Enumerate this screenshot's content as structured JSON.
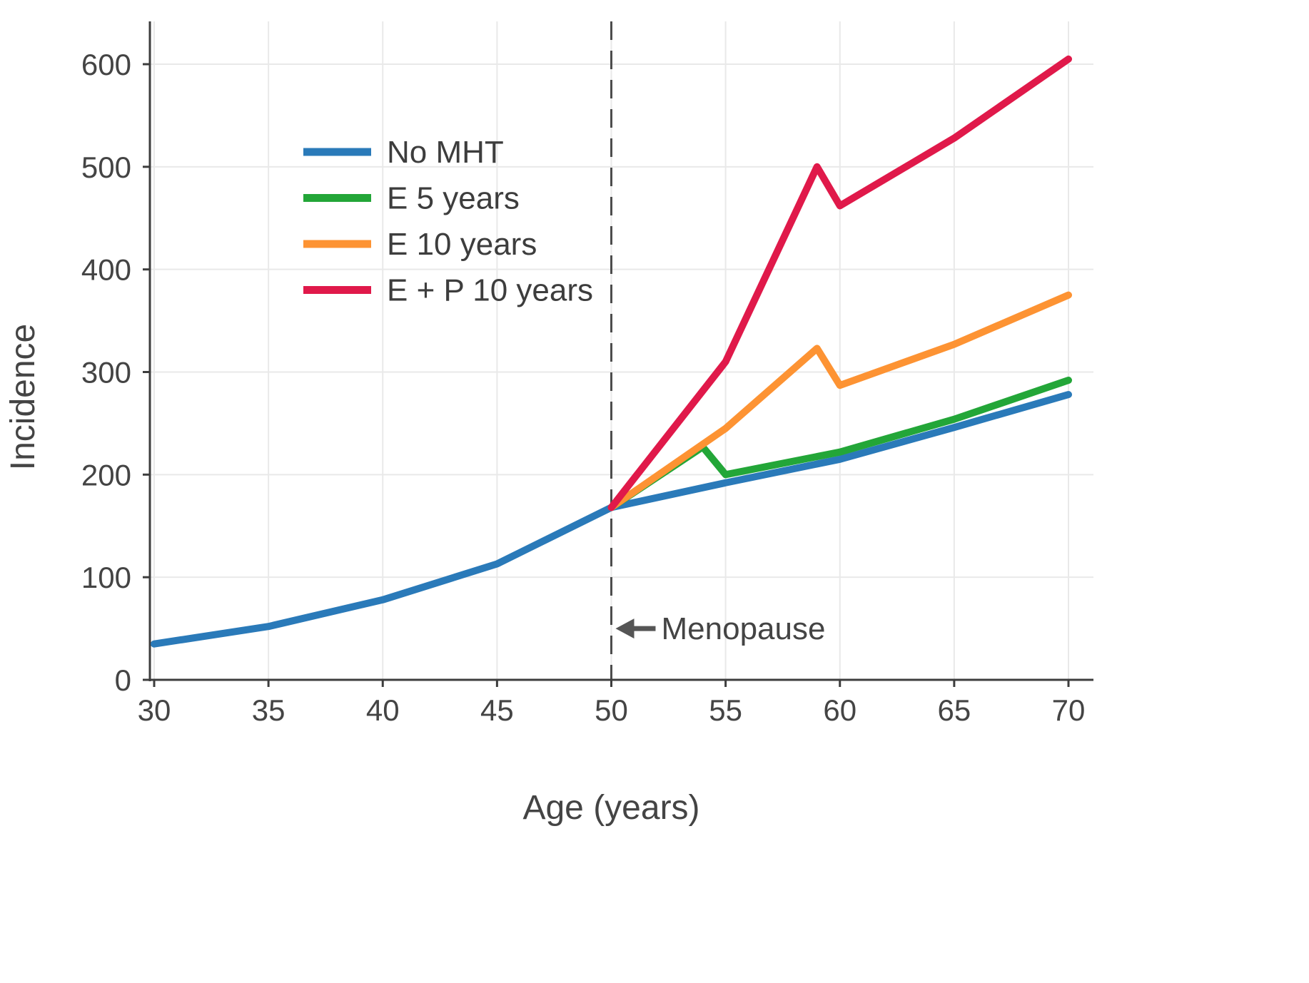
{
  "chart_data": {
    "type": "line",
    "title": "",
    "xlabel": "Age (years)",
    "ylabel": "Incidence",
    "xlim": [
      30,
      70
    ],
    "ylim": [
      0,
      650
    ],
    "xticks": [
      30,
      35,
      40,
      45,
      50,
      55,
      60,
      65,
      70
    ],
    "yticks": [
      0,
      100,
      200,
      300,
      400,
      500,
      600
    ],
    "grid": true,
    "legend_position": "upper-left-inside",
    "colors": {
      "axis": "#3d3d3d",
      "tick_text": "#444444",
      "grid": "#e9e9e9",
      "vline": "#4d4d4d",
      "annotation_text": "#444444",
      "arrow": "#555555"
    },
    "series": [
      {
        "name": "No MHT",
        "color": "#2a7ab9",
        "x": [
          30,
          35,
          40,
          45,
          50,
          55,
          60,
          65,
          70
        ],
        "y": [
          35,
          52,
          78,
          113,
          168,
          192,
          215,
          246,
          278
        ]
      },
      {
        "name": "E 5 years",
        "color": "#23a638",
        "x": [
          50,
          54,
          55,
          60,
          65,
          70
        ],
        "y": [
          168,
          227,
          200,
          222,
          254,
          292
        ]
      },
      {
        "name": "E 10 years",
        "color": "#fd9333",
        "x": [
          50,
          55,
          59,
          60,
          65,
          70
        ],
        "y": [
          168,
          245,
          323,
          287,
          327,
          375
        ]
      },
      {
        "name": "E + P 10 years",
        "color": "#e0194a",
        "x": [
          50,
          55,
          59,
          60,
          65,
          70
        ],
        "y": [
          168,
          310,
          500,
          462,
          528,
          605
        ]
      }
    ],
    "vline": {
      "x": 50,
      "style": "dashed",
      "color": "#4d4d4d"
    },
    "annotations": [
      {
        "text": "Menopause",
        "x": 50,
        "y": 50,
        "arrow": "left"
      }
    ]
  }
}
